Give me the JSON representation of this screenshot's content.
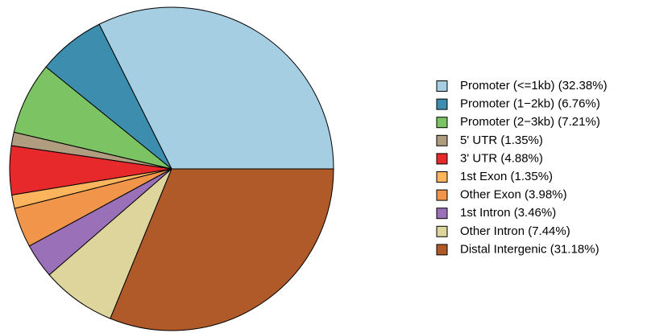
{
  "chart_data": {
    "type": "pie",
    "categories": [
      "Promoter (<=1kb) (32.38%)",
      "Promoter (1−2kb) (6.76%)",
      "Promoter (2−3kb) (7.21%)",
      "5' UTR (1.35%)",
      "3' UTR (4.88%)",
      "1st Exon (1.35%)",
      "Other Exon (3.98%)",
      "1st Intron (3.46%)",
      "Other Intron (7.44%)",
      "Distal Intergenic (31.18%)"
    ],
    "values": [
      32.38,
      6.76,
      7.21,
      1.35,
      4.88,
      1.35,
      3.98,
      3.46,
      7.44,
      31.18
    ],
    "colors": [
      "#a6cee3",
      "#3d8eae",
      "#7cc463",
      "#b09c7f",
      "#e7292c",
      "#fcb55d",
      "#f0954a",
      "#9a70b8",
      "#ddd59c",
      "#b05a29"
    ]
  }
}
